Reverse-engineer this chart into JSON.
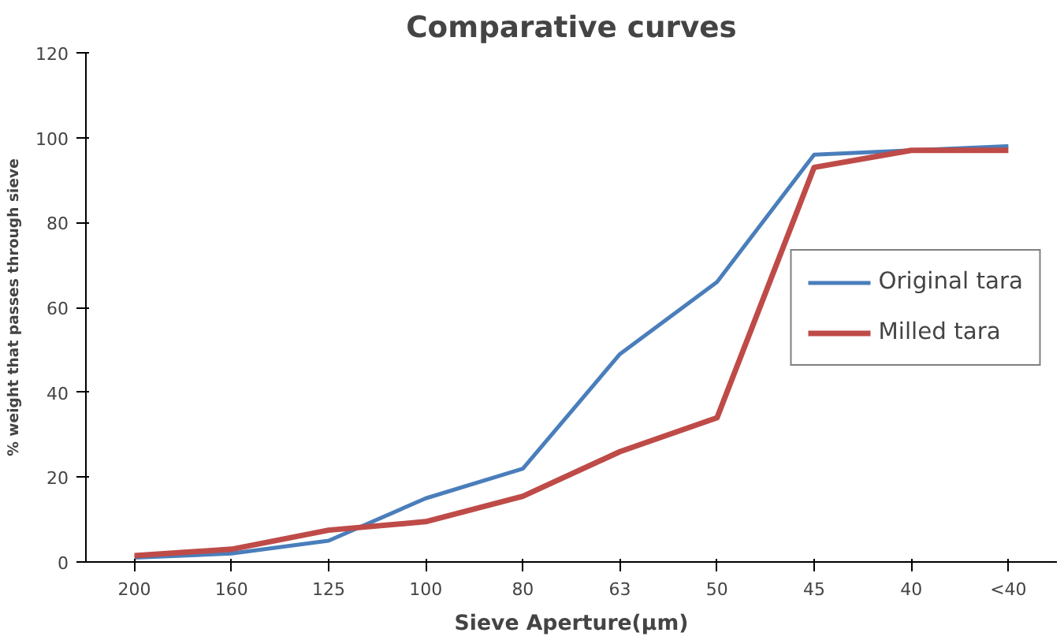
{
  "chart_data": {
    "type": "line",
    "title": "Comparative curves",
    "xlabel": "Sieve Aperture(µm)",
    "ylabel": "% weight that passes through sieve",
    "categories": [
      "200",
      "160",
      "125",
      "100",
      "80",
      "63",
      "50",
      "45",
      "40",
      "<40"
    ],
    "series": [
      {
        "name": "Original tara",
        "color": "#4a7ebb",
        "values": [
          1,
          2,
          5,
          15,
          22,
          49,
          66,
          96,
          97,
          98
        ]
      },
      {
        "name": "Milled tara",
        "color": "#be4b48",
        "values": [
          1.5,
          3,
          7.5,
          9.5,
          15.5,
          26,
          34,
          93,
          97,
          97
        ]
      }
    ],
    "ylim": [
      0,
      120
    ],
    "yticks": [
      0,
      20,
      40,
      60,
      80,
      100,
      120
    ],
    "grid": false,
    "legend": "right",
    "marker": "none",
    "line_style": "solid"
  }
}
